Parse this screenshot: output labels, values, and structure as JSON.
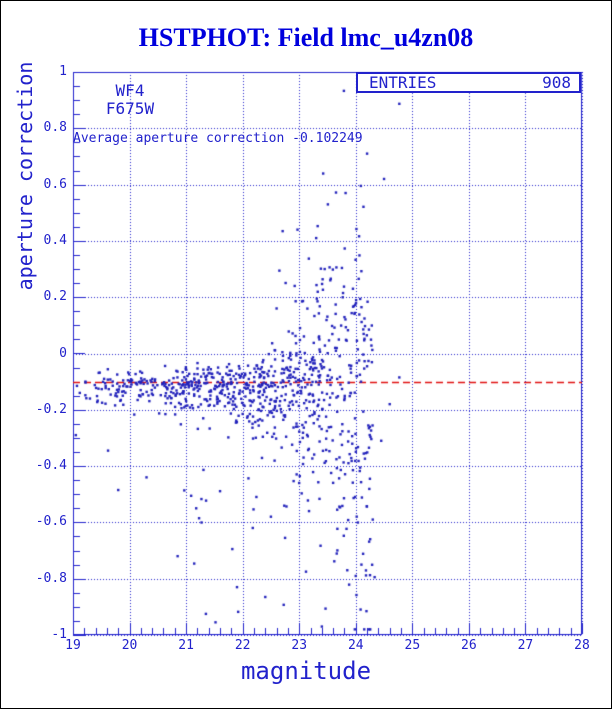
{
  "window": {
    "background": "#ffffff",
    "border_color": "#000000"
  },
  "title": {
    "text": "HSTPHOT: Field lmc_u4zn08",
    "color": "#0000dd"
  },
  "chart_data": {
    "type": "scatter",
    "title": "HSTPHOT: Field lmc_u4zn08",
    "xlabel": "magnitude",
    "ylabel": "aperture correction",
    "xlim": [
      19,
      28
    ],
    "ylim": [
      -1,
      1
    ],
    "x_ticks": [
      19,
      20,
      21,
      22,
      23,
      24,
      25,
      26,
      27,
      28
    ],
    "x_tick_labels": [
      "19",
      "20",
      "21",
      "22",
      "23",
      "24",
      "25",
      "26",
      "27",
      "28"
    ],
    "x_minor_step": 0.2,
    "y_ticks": [
      1,
      0.8,
      0.6,
      0.4,
      0.2,
      0,
      -0.2,
      -0.4,
      -0.6,
      -0.8,
      -1
    ],
    "y_tick_labels": [
      "1",
      "0.8",
      "0.6",
      "0.4",
      "0.2",
      "0",
      "-0.2",
      "-0.4",
      "-0.6",
      "-0.8",
      "-1"
    ],
    "y_minor_step": 0.05,
    "grid": "dotted blue gridlines at every major tick, both axes",
    "legend_position": "none",
    "frame_color": "#2222cc",
    "point_color": "#2222bb",
    "stats_box": {
      "label": "ENTRIES",
      "value": "908"
    },
    "camera_label": "WF4",
    "filter_label": "F675W",
    "annotation": "Average aperture correction -0.102249",
    "average_line": {
      "y": -0.102249,
      "color": "#e01010",
      "style": "dashed"
    },
    "n_points": 908,
    "point_cloud_model": {
      "comment": "908 points: tight band near y=-0.12 for mag 19-22 fanning out to +/-0.9 by mag 24.5; generated deterministically from these parameters",
      "seed": 987321,
      "band": {
        "n": 760,
        "mag_base": 19.15,
        "mag_span": 5.15,
        "mag_pow": 0.62,
        "mag_max": 24.42,
        "center": -0.118,
        "s0": 0.03,
        "s1": 0.55,
        "s_pow": 6,
        "neg_skew": 1.55
      },
      "plume_up": {
        "n": 38,
        "mag_min": 22.5,
        "mag_span": 1.45,
        "base": -0.08,
        "amp": 0.72,
        "pow": 2.0
      },
      "plume_down": {
        "n": 75,
        "mag_min": 20.9,
        "mag_span": 3.45,
        "base": -0.14,
        "amp": 0.8,
        "pow": 2.4
      },
      "clamp_y": [
        -0.98,
        0.955
      ]
    },
    "notable_points": [
      [
        24.77,
        0.887
      ],
      [
        23.79,
        0.933
      ],
      [
        24.5,
        0.62
      ],
      [
        24.2,
        0.71
      ],
      [
        23.82,
        0.57
      ],
      [
        23.3,
        0.41
      ],
      [
        23.17,
        0.337
      ],
      [
        23.45,
        0.3
      ],
      [
        23.55,
        0.26
      ],
      [
        22.92,
        0.24
      ],
      [
        23.95,
        0.23
      ],
      [
        22.6,
        0.16
      ],
      [
        23.05,
        0.185
      ],
      [
        19.07,
        -0.115
      ],
      [
        19.12,
        -0.14
      ],
      [
        19.22,
        -0.1
      ],
      [
        19.3,
        -0.16
      ],
      [
        19.05,
        -0.29
      ],
      [
        19.45,
        -0.125
      ],
      [
        19.55,
        -0.09
      ],
      [
        19.62,
        -0.345
      ],
      [
        19.8,
        -0.485
      ],
      [
        21.35,
        -0.925
      ],
      [
        21.52,
        -0.955
      ],
      [
        22.4,
        -0.865
      ],
      [
        23.12,
        -0.775
      ],
      [
        23.85,
        -0.77
      ],
      [
        24.1,
        -0.75
      ],
      [
        22.75,
        -0.655
      ],
      [
        21.9,
        -0.83
      ],
      [
        23.4,
        -0.97
      ],
      [
        20.85,
        -0.72
      ],
      [
        20.3,
        -0.44
      ],
      [
        24.3,
        -0.59
      ],
      [
        24.25,
        -0.445
      ],
      [
        24.77,
        -0.085
      ],
      [
        24.6,
        -0.18
      ],
      [
        24.45,
        -0.31
      ]
    ]
  }
}
